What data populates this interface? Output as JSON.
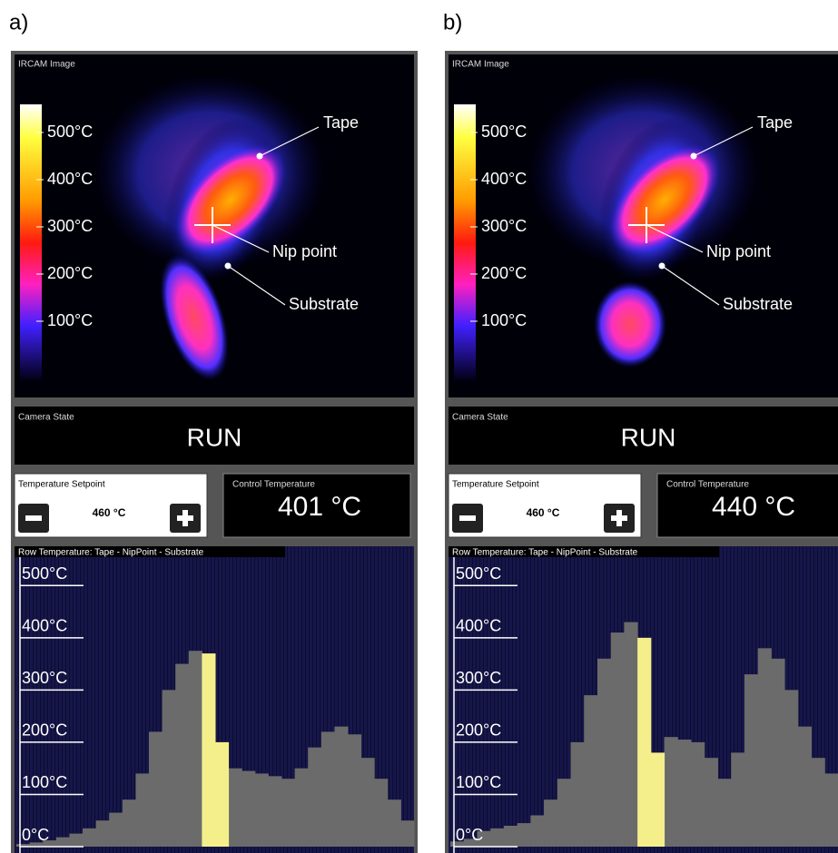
{
  "panels": [
    {
      "label": "a)",
      "ircam": {
        "title": "IRCAM Image",
        "scale": [
          "500°C",
          "400°C",
          "300°C",
          "200°C",
          "100°C"
        ],
        "annotations": [
          "Tape",
          "Nip point",
          "Substrate"
        ]
      },
      "camera_state": {
        "title": "Camera State",
        "value": "RUN"
      },
      "setpoint": {
        "title": "Temperature Setpoint",
        "value": "460 °C"
      },
      "control": {
        "title": "Control Temperature",
        "value": "401 °C"
      },
      "row_temperature": {
        "type": "bar",
        "title": "Row Temperature: Tape - NipPoint - Substrate",
        "ylim": [
          0,
          570
        ],
        "yticks": [
          {
            "value": 0,
            "label": "0°C"
          },
          {
            "value": 100,
            "label": "100°C"
          },
          {
            "value": 200,
            "label": "200°C"
          },
          {
            "value": 300,
            "label": "300°C"
          },
          {
            "value": 400,
            "label": "400°C"
          },
          {
            "value": 500,
            "label": "500°C"
          }
        ],
        "series": [
          {
            "color": "#6b6b6b",
            "values": [
              5,
              8,
              12,
              18,
              25,
              35,
              50,
              65,
              90,
              140,
              220,
              300,
              350,
              375,
              null,
              null,
              150,
              145,
              140,
              135,
              130,
              150,
              190,
              220,
              230,
              215,
              170,
              130,
              90,
              50
            ]
          },
          {
            "color": "#f4ef8a",
            "values": [
              null,
              null,
              null,
              null,
              null,
              null,
              null,
              null,
              null,
              null,
              null,
              null,
              null,
              null,
              370,
              200,
              null,
              null,
              null,
              null,
              null,
              null,
              null,
              null,
              null,
              null,
              null,
              null,
              null,
              null
            ]
          }
        ]
      }
    },
    {
      "label": "b)",
      "ircam": {
        "title": "IRCAM Image",
        "scale": [
          "500°C",
          "400°C",
          "300°C",
          "200°C",
          "100°C"
        ],
        "annotations": [
          "Tape",
          "Nip point",
          "Substrate"
        ]
      },
      "camera_state": {
        "title": "Camera State",
        "value": "RUN"
      },
      "setpoint": {
        "title": "Temperature Setpoint",
        "value": "460 °C"
      },
      "control": {
        "title": "Control Temperature",
        "value": "440 °C"
      },
      "row_temperature": {
        "type": "bar",
        "title": "Row Temperature: Tape - NipPoint - Substrate",
        "ylim": [
          0,
          570
        ],
        "yticks": [
          {
            "value": 0,
            "label": "0°C"
          },
          {
            "value": 100,
            "label": "100°C"
          },
          {
            "value": 200,
            "label": "200°C"
          },
          {
            "value": 300,
            "label": "300°C"
          },
          {
            "value": 400,
            "label": "400°C"
          },
          {
            "value": 500,
            "label": "500°C"
          }
        ],
        "series": [
          {
            "color": "#6b6b6b",
            "values": [
              10,
              15,
              30,
              35,
              40,
              45,
              60,
              90,
              130,
              200,
              290,
              360,
              410,
              430,
              null,
              null,
              210,
              205,
              200,
              170,
              130,
              180,
              330,
              380,
              360,
              300,
              230,
              170,
              140
            ]
          },
          {
            "color": "#f4ef8a",
            "values": [
              null,
              null,
              null,
              null,
              null,
              null,
              null,
              null,
              null,
              null,
              null,
              null,
              null,
              null,
              400,
              180,
              null,
              null,
              null,
              null,
              null,
              null,
              null,
              null,
              null,
              null,
              null,
              null,
              null
            ]
          }
        ]
      }
    }
  ]
}
